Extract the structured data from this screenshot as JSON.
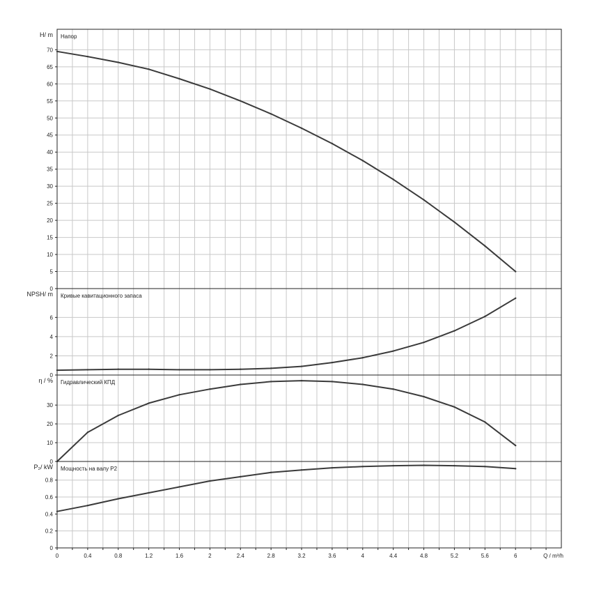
{
  "chart_data": [
    {
      "type": "line",
      "title": "Напор",
      "ylabel": "H/ m",
      "xlabel": "Q / m³/h",
      "xlim": [
        0,
        6.6
      ],
      "ylim": [
        0,
        76
      ],
      "yticks": [
        0,
        5,
        10,
        15,
        20,
        25,
        30,
        35,
        40,
        45,
        50,
        55,
        60,
        65,
        70
      ],
      "grid": true,
      "series": [
        {
          "x": [
            0,
            0.4,
            0.8,
            1.2,
            1.6,
            2.0,
            2.4,
            2.8,
            3.2,
            3.6,
            4.0,
            4.4,
            4.8,
            5.2,
            5.6,
            6.0
          ],
          "y": [
            69.5,
            68,
            66.3,
            64.3,
            61.5,
            58.5,
            55,
            51.2,
            47,
            42.5,
            37.5,
            32,
            26,
            19.5,
            12.5,
            5
          ]
        }
      ],
      "color": "#3a3a3a"
    },
    {
      "type": "line",
      "title": "Кривые кавитационного запаса",
      "ylabel": "NPSH/ m",
      "xlim": [
        0,
        6.6
      ],
      "ylim": [
        0,
        9
      ],
      "yticks": [
        0,
        2,
        4,
        6
      ],
      "grid": true,
      "series": [
        {
          "x": [
            0,
            0.4,
            0.8,
            1.2,
            1.6,
            2.0,
            2.4,
            2.8,
            3.2,
            3.6,
            4.0,
            4.4,
            4.8,
            5.2,
            5.6,
            6.0
          ],
          "y": [
            0.5,
            0.55,
            0.6,
            0.6,
            0.55,
            0.55,
            0.6,
            0.7,
            0.9,
            1.3,
            1.8,
            2.5,
            3.4,
            4.6,
            6.1,
            8.0
          ]
        }
      ],
      "color": "#3a3a3a"
    },
    {
      "type": "line",
      "title": "Гидравлический КПД",
      "ylabel": "η / %",
      "xlim": [
        0,
        6.6
      ],
      "ylim": [
        0,
        46
      ],
      "yticks": [
        0,
        10,
        20,
        30
      ],
      "grid": true,
      "series": [
        {
          "x": [
            0,
            0.4,
            0.8,
            1.2,
            1.6,
            2.0,
            2.4,
            2.8,
            3.2,
            3.6,
            4.0,
            4.4,
            4.8,
            5.2,
            5.6,
            6.0
          ],
          "y": [
            0,
            15.5,
            24.5,
            31,
            35.5,
            38.5,
            41,
            42.5,
            43,
            42.5,
            41,
            38.5,
            34.5,
            29,
            21,
            8.5
          ]
        }
      ],
      "color": "#3a3a3a"
    },
    {
      "type": "line",
      "title": "Мощность на валу P2",
      "ylabel": "P₂/ kW",
      "xlim": [
        0,
        6.6
      ],
      "ylim": [
        0,
        1.02
      ],
      "yticks": [
        0,
        0.2,
        0.4,
        0.6,
        0.8
      ],
      "xticks": [
        0,
        0.4,
        0.8,
        1.2,
        1.6,
        2.0,
        2.4,
        2.8,
        3.2,
        3.6,
        4.0,
        4.4,
        4.8,
        5.2,
        5.6,
        6.0
      ],
      "grid": true,
      "series": [
        {
          "x": [
            0,
            0.4,
            0.8,
            1.2,
            1.6,
            2.0,
            2.4,
            2.8,
            3.2,
            3.6,
            4.0,
            4.4,
            4.8,
            5.2,
            5.6,
            6.0
          ],
          "y": [
            0.43,
            0.5,
            0.58,
            0.65,
            0.72,
            0.79,
            0.84,
            0.89,
            0.92,
            0.945,
            0.96,
            0.97,
            0.975,
            0.97,
            0.96,
            0.935
          ]
        }
      ],
      "color": "#3a3a3a"
    }
  ]
}
